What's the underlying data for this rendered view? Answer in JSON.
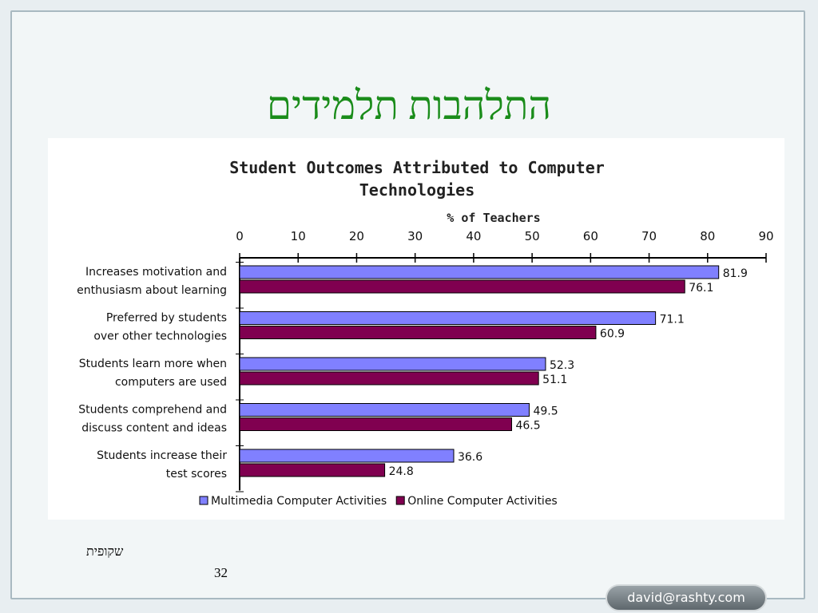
{
  "slide": {
    "title": "התלהבות תלמידים",
    "caption": "שקופית",
    "page_number": "32",
    "email": "david@rashty.com"
  },
  "colors": {
    "title": "#1a8c1a",
    "series_multimedia": "#8080ff",
    "series_online": "#800050"
  },
  "chart_data": {
    "type": "bar",
    "orientation": "horizontal",
    "title": "Student Outcomes Attributed to Computer Technologies",
    "xlabel": "% of Teachers",
    "ylabel": "",
    "xlim": [
      0,
      90
    ],
    "ticks": [
      0,
      10,
      20,
      30,
      40,
      50,
      60,
      70,
      80,
      90
    ],
    "grid": false,
    "legend": "bottom",
    "categories": [
      [
        "Increases motivation and",
        "enthusiasm about learning"
      ],
      [
        "Preferred by students",
        "over other technologies"
      ],
      [
        "Students learn more when",
        "computers are used"
      ],
      [
        "Students comprehend and",
        "discuss content and ideas"
      ],
      [
        "Students increase their",
        "test scores"
      ]
    ],
    "series": [
      {
        "name": "Multimedia Computer Activities",
        "color": "#8080ff",
        "values": [
          81.9,
          71.1,
          52.3,
          49.5,
          36.6
        ]
      },
      {
        "name": "Online Computer Activities",
        "color": "#800050",
        "values": [
          76.1,
          60.9,
          51.1,
          46.5,
          24.8
        ]
      }
    ]
  }
}
